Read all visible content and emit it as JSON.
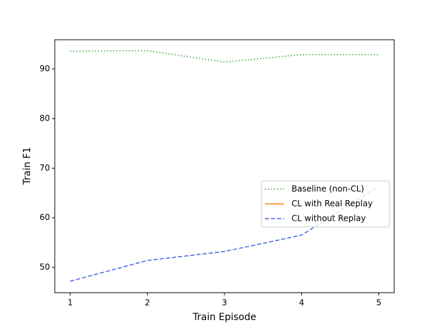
{
  "chart_data": {
    "type": "line",
    "xlabel": "Train Episode",
    "ylabel": "Train F1",
    "x": [
      1,
      2,
      3,
      4,
      5
    ],
    "series": [
      {
        "name": "Baseline (non-CL)",
        "color": "#2ca02c",
        "dash": "dotted",
        "values": [
          93.6,
          93.7,
          91.4,
          92.9,
          92.9
        ]
      },
      {
        "name": "CL with Real Replay",
        "color": "#ff7f0e",
        "dash": "solid",
        "values": [
          null,
          null,
          null,
          null,
          null
        ]
      },
      {
        "name": "CL without Replay",
        "color": "#4169e1",
        "dash": "dashed",
        "values": [
          47.2,
          51.4,
          53.2,
          56.5,
          66.4
        ]
      }
    ],
    "xlim": [
      0.8,
      5.2
    ],
    "xticks": [
      1,
      2,
      3,
      4,
      5
    ],
    "ylim": [
      44.9,
      95.9
    ],
    "yticks": [
      50,
      60,
      70,
      80,
      90
    ],
    "legend": "center right"
  }
}
